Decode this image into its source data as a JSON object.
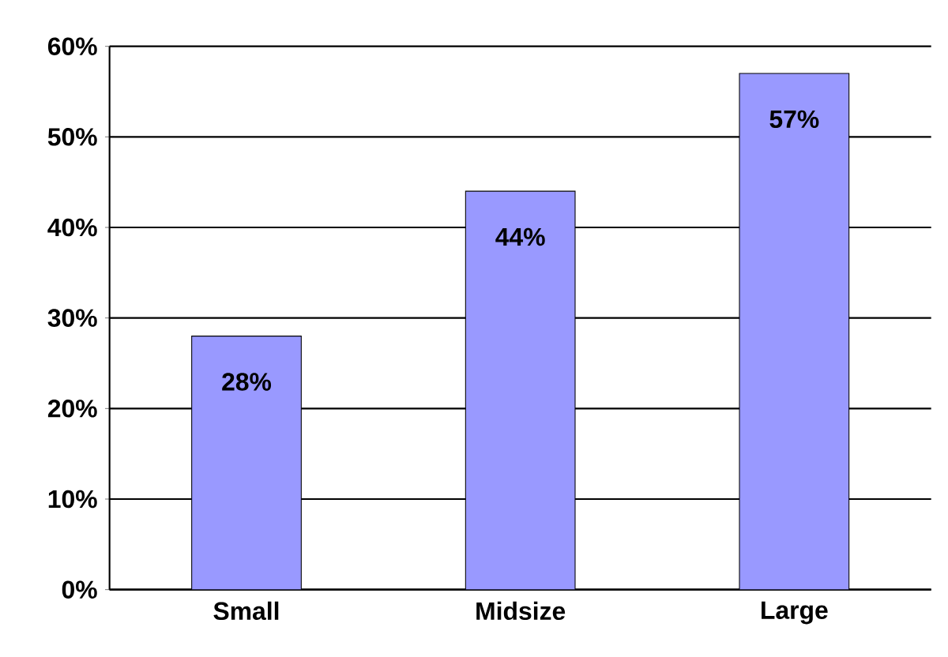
{
  "chart_data": {
    "type": "bar",
    "categories": [
      "Small",
      "Midsize",
      "Large"
    ],
    "values": [
      28,
      44,
      57
    ],
    "color": "#9999ff",
    "value_labels": [
      "28%",
      "44%",
      "57%"
    ],
    "ylim": [
      0,
      60
    ],
    "yticks": [
      {
        "value": 0,
        "label": "0%"
      },
      {
        "value": 10,
        "label": "10%"
      },
      {
        "value": 20,
        "label": "20%"
      },
      {
        "value": 30,
        "label": "30%"
      },
      {
        "value": 40,
        "label": "40%"
      },
      {
        "value": 50,
        "label": "50%"
      },
      {
        "value": 60,
        "label": "60%"
      }
    ],
    "grid": "y"
  }
}
